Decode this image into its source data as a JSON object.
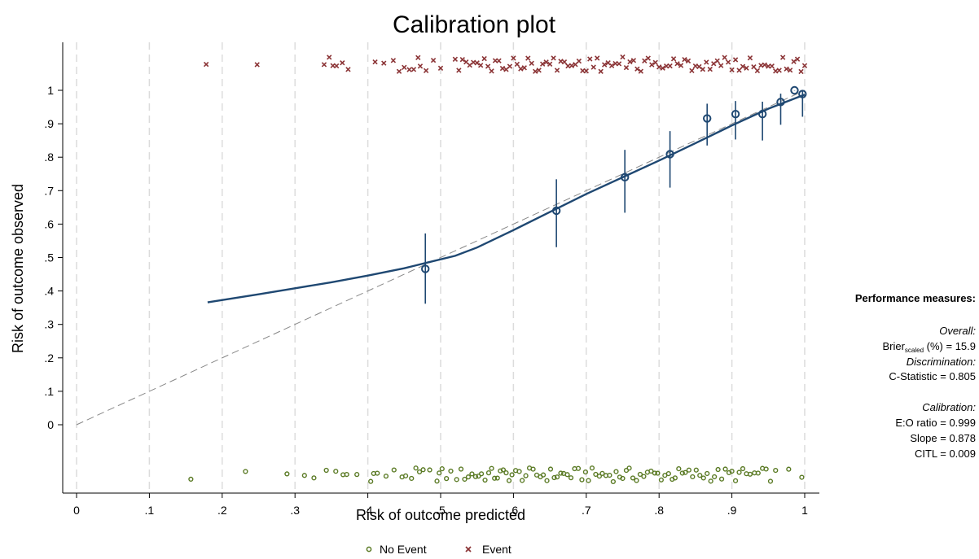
{
  "chart_data": {
    "type": "scatter",
    "title": "Calibration plot",
    "xlabel": "Risk of outcome predicted",
    "ylabel": "Risk of outcome observed",
    "xlim": [
      0,
      1
    ],
    "ylim": [
      0,
      1
    ],
    "x_ticks": [
      0,
      0.1,
      0.2,
      0.3,
      0.4,
      0.5,
      0.6,
      0.7,
      0.8,
      0.9,
      1
    ],
    "x_tick_labels": [
      "0",
      ".1",
      ".2",
      ".3",
      ".4",
      ".5",
      ".6",
      ".7",
      ".8",
      ".9",
      "1"
    ],
    "y_ticks": [
      0,
      0.1,
      0.2,
      0.3,
      0.4,
      0.5,
      0.6,
      0.7,
      0.8,
      0.9,
      1
    ],
    "y_tick_labels": [
      "0",
      ".1",
      ".2",
      ".3",
      ".4",
      ".5",
      ".6",
      ".7",
      ".8",
      ".9",
      "1"
    ],
    "grid": "vertical dashed",
    "reference_line": {
      "x": [
        0,
        1
      ],
      "y": [
        0,
        1
      ]
    },
    "grouped_points": [
      {
        "x": 0.479,
        "y": 0.466,
        "lo": 0.362,
        "hi": 0.572
      },
      {
        "x": 0.659,
        "y": 0.64,
        "lo": 0.531,
        "hi": 0.734
      },
      {
        "x": 0.753,
        "y": 0.74,
        "lo": 0.634,
        "hi": 0.822
      },
      {
        "x": 0.815,
        "y": 0.809,
        "lo": 0.709,
        "hi": 0.878
      },
      {
        "x": 0.866,
        "y": 0.916,
        "lo": 0.835,
        "hi": 0.96
      },
      {
        "x": 0.905,
        "y": 0.929,
        "lo": 0.853,
        "hi": 0.968
      },
      {
        "x": 0.942,
        "y": 0.929,
        "lo": 0.85,
        "hi": 0.966
      },
      {
        "x": 0.967,
        "y": 0.965,
        "lo": 0.897,
        "hi": 0.99
      },
      {
        "x": 0.986,
        "y": 1.0,
        "lo": 0.999,
        "hi": 1.0
      },
      {
        "x": 0.997,
        "y": 0.989,
        "lo": 0.921,
        "hi": 1.0
      }
    ],
    "smooth_curve": {
      "x": [
        0.18,
        0.25,
        0.3,
        0.35,
        0.4,
        0.45,
        0.48,
        0.52,
        0.55,
        0.6,
        0.65,
        0.7,
        0.75,
        0.8,
        0.85,
        0.9,
        0.95,
        1.0
      ],
      "y": [
        0.366,
        0.39,
        0.408,
        0.426,
        0.446,
        0.468,
        0.484,
        0.505,
        0.53,
        0.582,
        0.636,
        0.69,
        0.74,
        0.79,
        0.842,
        0.895,
        0.945,
        0.987
      ]
    },
    "legend": {
      "placement": "bottom-center",
      "entries": [
        {
          "name": "No Event",
          "marker": "circle",
          "color": "#5a7a24"
        },
        {
          "name": "Event",
          "marker": "x",
          "color": "#8b3436"
        }
      ]
    },
    "colors": {
      "curve": "#1f4872",
      "points": "#1f4872",
      "event": "#8b3436",
      "no_event": "#5a7a24",
      "reference": "#888888"
    },
    "spike_no_event_x": [
      0.157,
      0.232,
      0.289,
      0.313,
      0.326,
      0.343,
      0.356,
      0.366,
      0.371,
      0.385,
      0.404,
      0.408,
      0.413,
      0.425,
      0.436,
      0.447,
      0.452,
      0.46,
      0.466,
      0.471,
      0.476,
      0.485,
      0.495,
      0.498,
      0.502,
      0.508,
      0.514,
      0.522,
      0.528,
      0.533,
      0.538,
      0.543,
      0.548,
      0.552,
      0.556,
      0.561,
      0.566,
      0.57,
      0.574,
      0.578,
      0.582,
      0.586,
      0.59,
      0.594,
      0.598,
      0.603,
      0.608,
      0.612,
      0.617,
      0.622,
      0.627,
      0.632,
      0.637,
      0.641,
      0.646,
      0.651,
      0.656,
      0.66,
      0.665,
      0.669,
      0.674,
      0.679,
      0.684,
      0.689,
      0.694,
      0.699,
      0.703,
      0.708,
      0.713,
      0.718,
      0.722,
      0.727,
      0.732,
      0.737,
      0.741,
      0.746,
      0.75,
      0.755,
      0.759,
      0.764,
      0.769,
      0.774,
      0.779,
      0.784,
      0.789,
      0.794,
      0.798,
      0.803,
      0.808,
      0.813,
      0.818,
      0.822,
      0.827,
      0.832,
      0.836,
      0.841,
      0.846,
      0.851,
      0.856,
      0.861,
      0.866,
      0.871,
      0.876,
      0.881,
      0.886,
      0.891,
      0.896,
      0.9,
      0.905,
      0.91,
      0.915,
      0.92,
      0.925,
      0.931,
      0.936,
      0.942,
      0.947,
      0.953,
      0.96,
      0.978,
      0.996
    ],
    "spike_event_x": [
      0.178,
      0.248,
      0.34,
      0.347,
      0.352,
      0.357,
      0.365,
      0.373,
      0.41,
      0.422,
      0.435,
      0.443,
      0.45,
      0.457,
      0.463,
      0.469,
      0.472,
      0.48,
      0.49,
      0.5,
      0.52,
      0.525,
      0.53,
      0.535,
      0.54,
      0.545,
      0.55,
      0.555,
      0.56,
      0.565,
      0.57,
      0.575,
      0.58,
      0.585,
      0.59,
      0.595,
      0.6,
      0.605,
      0.61,
      0.615,
      0.62,
      0.625,
      0.63,
      0.635,
      0.64,
      0.645,
      0.65,
      0.655,
      0.66,
      0.665,
      0.67,
      0.675,
      0.68,
      0.685,
      0.69,
      0.695,
      0.7,
      0.705,
      0.71,
      0.715,
      0.72,
      0.725,
      0.73,
      0.735,
      0.74,
      0.745,
      0.75,
      0.755,
      0.76,
      0.765,
      0.77,
      0.775,
      0.78,
      0.785,
      0.79,
      0.795,
      0.8,
      0.805,
      0.81,
      0.815,
      0.82,
      0.825,
      0.83,
      0.835,
      0.84,
      0.845,
      0.85,
      0.855,
      0.86,
      0.865,
      0.87,
      0.875,
      0.88,
      0.885,
      0.89,
      0.895,
      0.9,
      0.905,
      0.91,
      0.915,
      0.92,
      0.925,
      0.93,
      0.935,
      0.94,
      0.945,
      0.95,
      0.955,
      0.96,
      0.965,
      0.97,
      0.975,
      0.98,
      0.985,
      0.99,
      0.995,
      1.0
    ]
  },
  "performance": {
    "heading": "Performance measures:",
    "overall_label": "Overall:",
    "brier_prefix": "Brier",
    "brier_sub": "scaled",
    "brier_suffix": " (%) =  15.9",
    "discrimination_label": "Discrimination:",
    "cstat": "C-Statistic = 0.805",
    "calibration_label": "Calibration:",
    "eo": "E:O ratio = 0.999",
    "slope": "Slope = 0.878",
    "citl": "CITL = 0.009"
  }
}
